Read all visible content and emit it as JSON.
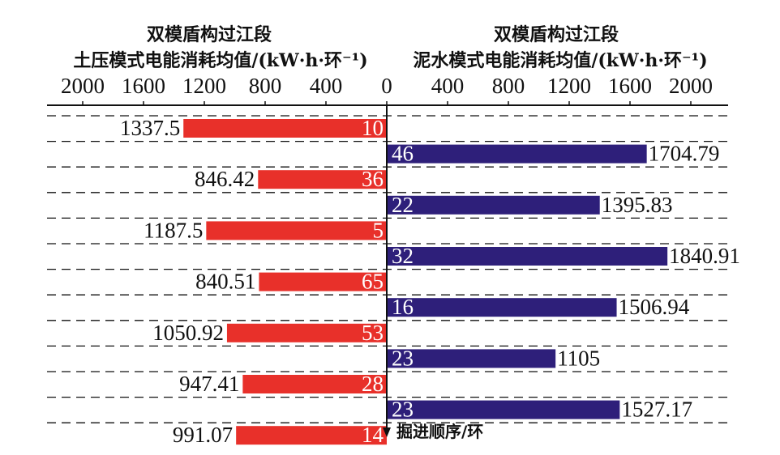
{
  "chart_data": {
    "type": "bar",
    "orientation": "horizontal-butterfly",
    "left_panel": {
      "title_line1": "双模盾构过江段",
      "title_line2": "土压模式电能消耗均值/(kW·h·环⁻¹)",
      "ticks": [
        "2000",
        "1600",
        "1200",
        "800",
        "400",
        "0"
      ],
      "xlim": [
        0,
        2000
      ],
      "direction": "right-to-left",
      "color": "#e8302a",
      "bars": [
        {
          "value": 1337.5,
          "value_label": "1337.5",
          "count": "10"
        },
        {
          "value": 846.42,
          "value_label": "846.42",
          "count": "36"
        },
        {
          "value": 1187.5,
          "value_label": "1187.5",
          "count": "5"
        },
        {
          "value": 840.51,
          "value_label": "840.51",
          "count": "65"
        },
        {
          "value": 1050.92,
          "value_label": "1050.92",
          "count": "53"
        },
        {
          "value": 947.41,
          "value_label": "947.41",
          "count": "28"
        },
        {
          "value": 991.07,
          "value_label": "991.07",
          "count": "14"
        }
      ]
    },
    "right_panel": {
      "title_line1": "双模盾构过江段",
      "title_line2": "泥水模式电能消耗均值/(kW·h·环⁻¹)",
      "ticks": [
        "400",
        "800",
        "1200",
        "1600",
        "2000"
      ],
      "xlim": [
        0,
        2000
      ],
      "direction": "left-to-right",
      "color": "#2e1f7a",
      "bars": [
        {
          "value": 1704.79,
          "value_label": "1704.79",
          "count": "46"
        },
        {
          "value": 1395.83,
          "value_label": "1395.83",
          "count": "22"
        },
        {
          "value": 1840.91,
          "value_label": "1840.91",
          "count": "32"
        },
        {
          "value": 1506.94,
          "value_label": "1506.94",
          "count": "16"
        },
        {
          "value": 1105,
          "value_label": "1105",
          "count": "23"
        },
        {
          "value": 1527.17,
          "value_label": "1527.17",
          "count": "23"
        }
      ]
    },
    "y_axis_label": "掘进顺序/环",
    "grid": "dashed-horizontal"
  }
}
